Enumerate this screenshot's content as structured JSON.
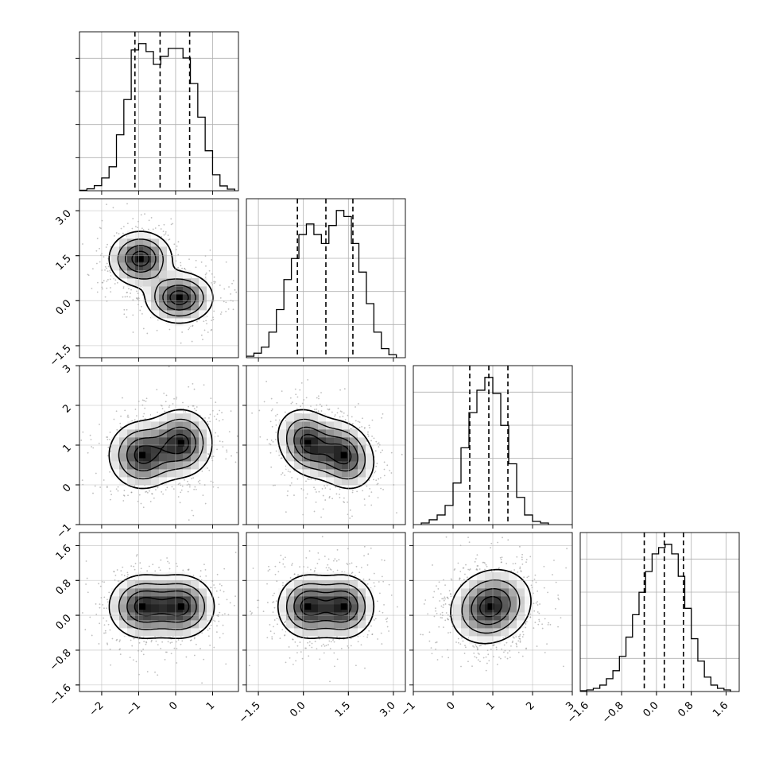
{
  "chart_data": {
    "type": "corner",
    "grid": true,
    "colors": {
      "hist": "#000000",
      "quantile": "#000000",
      "density": "#303030",
      "points": "#8a8a8a"
    },
    "params": [
      {
        "id": "p0",
        "range": [
          -2.6,
          1.7
        ],
        "ticks": [
          -2,
          -1,
          0,
          1
        ],
        "tick_labels": [
          "−2",
          "−1",
          "0",
          "1"
        ],
        "quantiles": [
          -1.1,
          -0.42,
          0.38
        ]
      },
      {
        "id": "p1",
        "range": [
          -1.9,
          3.4
        ],
        "ticks": [
          -1.5,
          0.0,
          1.5,
          3.0
        ],
        "tick_labels": [
          "−1.5",
          "0.0",
          "1.5",
          "3.0"
        ],
        "quantiles": [
          -0.2,
          0.75,
          1.65
        ]
      },
      {
        "id": "p2",
        "range": [
          -1.0,
          3.0
        ],
        "ticks": [
          -1,
          0,
          1,
          2,
          3
        ],
        "tick_labels": [
          "−1",
          "0",
          "1",
          "2",
          "3"
        ],
        "quantiles": [
          0.42,
          0.9,
          1.38
        ]
      },
      {
        "id": "p3",
        "range": [
          -1.75,
          1.9
        ],
        "ticks": [
          -1.6,
          -0.8,
          0.0,
          0.8,
          1.6
        ],
        "tick_labels": [
          "−1.6",
          "−0.8",
          "0.0",
          "0.8",
          "1.6"
        ],
        "quantiles": [
          -0.28,
          0.18,
          0.62
        ]
      }
    ],
    "histograms": [
      {
        "param": "p0",
        "bins": [
          -2.6,
          -2.4,
          -2.2,
          -2.0,
          -1.8,
          -1.6,
          -1.4,
          -1.2,
          -1.0,
          -0.8,
          -0.6,
          -0.4,
          -0.2,
          0.0,
          0.2,
          0.4,
          0.6,
          0.8,
          1.0,
          1.2,
          1.4,
          1.6
        ],
        "counts": [
          0.3,
          1.2,
          3.2,
          8,
          15,
          35,
          57,
          88,
          92,
          87,
          79,
          84,
          89,
          89,
          83,
          67,
          46,
          25,
          10,
          3,
          1
        ]
      },
      {
        "param": "p1",
        "bins": [
          -1.9,
          -1.65,
          -1.4,
          -1.15,
          -0.9,
          -0.65,
          -0.4,
          -0.15,
          0.1,
          0.35,
          0.6,
          0.85,
          1.1,
          1.35,
          1.6,
          1.85,
          2.1,
          2.35,
          2.6,
          2.85,
          3.1
        ],
        "counts": [
          1,
          3,
          7,
          17,
          32,
          52,
          66,
          82,
          89,
          82,
          76,
          88,
          98,
          94,
          76,
          57,
          36,
          17,
          6,
          2
        ]
      },
      {
        "param": "p2",
        "bins": [
          -0.8,
          -0.6,
          -0.4,
          -0.2,
          0.0,
          0.2,
          0.4,
          0.6,
          0.8,
          1.0,
          1.2,
          1.4,
          1.6,
          1.8,
          2.0,
          2.2,
          2.4
        ],
        "counts": [
          1,
          3,
          6,
          12,
          26,
          48,
          70,
          84,
          92,
          82,
          62,
          38,
          17,
          6,
          2,
          1
        ]
      },
      {
        "param": "p3",
        "bins": [
          -1.75,
          -1.6,
          -1.45,
          -1.3,
          -1.15,
          -1.0,
          -0.85,
          -0.7,
          -0.55,
          -0.4,
          -0.25,
          -0.1,
          0.05,
          0.2,
          0.35,
          0.5,
          0.65,
          0.8,
          0.95,
          1.1,
          1.25,
          1.4,
          1.55,
          1.7
        ],
        "counts": [
          0.5,
          1,
          2,
          4,
          8,
          13,
          22,
          34,
          48,
          62,
          75,
          86,
          90,
          92,
          86,
          72,
          52,
          33,
          19,
          9,
          4,
          2,
          1
        ]
      }
    ],
    "panels_2d": [
      {
        "x": "p0",
        "y": "p1",
        "blobs": [
          {
            "cx": -0.95,
            "cy": 1.4,
            "sx": 0.42,
            "sy": 0.45,
            "rho": 0.0
          },
          {
            "cx": 0.1,
            "cy": 0.1,
            "sx": 0.45,
            "sy": 0.42,
            "rho": 0.0
          }
        ],
        "peaks": [
          {
            "x": -0.95,
            "y": 1.4
          },
          {
            "x": 0.1,
            "y": 0.1
          }
        ]
      },
      {
        "x": "p0",
        "y": "p2",
        "blobs": [
          {
            "cx": -0.9,
            "cy": 0.75,
            "sx": 0.45,
            "sy": 0.42,
            "rho": 0.0
          },
          {
            "cx": 0.15,
            "cy": 1.05,
            "sx": 0.42,
            "sy": 0.42,
            "rho": 0.0
          }
        ],
        "peaks": [
          {
            "x": -0.9,
            "y": 0.75
          },
          {
            "x": 0.15,
            "y": 1.05
          }
        ]
      },
      {
        "x": "p1",
        "y": "p2",
        "blobs": [
          {
            "cx": 0.15,
            "cy": 1.05,
            "sx": 0.5,
            "sy": 0.42,
            "rho": -0.2
          },
          {
            "cx": 1.35,
            "cy": 0.75,
            "sx": 0.5,
            "sy": 0.42,
            "rho": -0.2
          }
        ],
        "peaks": [
          {
            "x": 0.15,
            "y": 1.05
          },
          {
            "x": 1.35,
            "y": 0.75
          }
        ]
      },
      {
        "x": "p0",
        "y": "p3",
        "blobs": [
          {
            "cx": -0.9,
            "cy": 0.2,
            "sx": 0.45,
            "sy": 0.36,
            "rho": 0.0
          },
          {
            "cx": 0.15,
            "cy": 0.2,
            "sx": 0.45,
            "sy": 0.36,
            "rho": 0.0
          }
        ],
        "peaks": [
          {
            "x": -0.9,
            "y": 0.2
          },
          {
            "x": 0.15,
            "y": 0.2
          }
        ]
      },
      {
        "x": "p1",
        "y": "p3",
        "blobs": [
          {
            "cx": 0.15,
            "cy": 0.2,
            "sx": 0.5,
            "sy": 0.36,
            "rho": 0.0
          },
          {
            "cx": 1.35,
            "cy": 0.2,
            "sx": 0.5,
            "sy": 0.36,
            "rho": 0.0
          }
        ],
        "peaks": [
          {
            "x": 0.15,
            "y": 0.2
          },
          {
            "x": 1.35,
            "y": 0.2
          }
        ]
      },
      {
        "x": "p2",
        "y": "p3",
        "blobs": [
          {
            "cx": 0.95,
            "cy": 0.2,
            "sx": 0.5,
            "sy": 0.42,
            "rho": 0.15
          }
        ],
        "peaks": [
          {
            "x": 0.95,
            "y": 0.2
          }
        ]
      }
    ]
  }
}
